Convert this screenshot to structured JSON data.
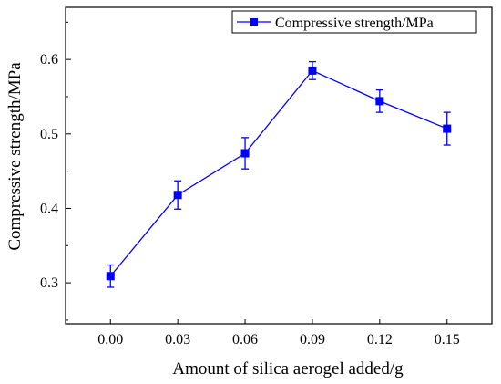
{
  "chart_data": {
    "type": "line",
    "title": "",
    "xlabel": "Amount of silica aerogel added/g",
    "ylabel": "Compressive strength/MPa",
    "x": [
      "0.00",
      "0.03",
      "0.06",
      "0.09",
      "0.12",
      "0.15"
    ],
    "series": [
      {
        "name": "Compressive strength/MPa",
        "values": [
          0.309,
          0.418,
          0.474,
          0.585,
          0.544,
          0.507
        ],
        "error": [
          0.015,
          0.019,
          0.021,
          0.012,
          0.015,
          0.022
        ],
        "color": "#0000ff",
        "marker": "square"
      }
    ],
    "yticks": [
      "0.3",
      "0.4",
      "0.5",
      "0.6"
    ],
    "xlim": [
      -0.02,
      0.17
    ],
    "ylim": [
      0.245,
      0.67
    ],
    "grid": false,
    "legend": "top-right",
    "error_bars": true
  }
}
